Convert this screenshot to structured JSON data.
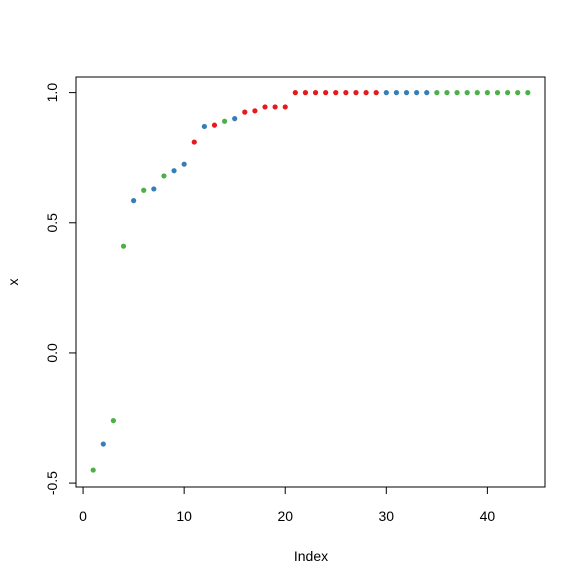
{
  "chart_data": {
    "type": "scatter",
    "title": "",
    "xlabel": "Index",
    "ylabel": "x",
    "xlim": [
      -0.7,
      45.7
    ],
    "ylim": [
      -0.515,
      1.06
    ],
    "x_ticks": [
      0,
      10,
      20,
      30,
      40
    ],
    "x_tick_labels": [
      "0",
      "10",
      "20",
      "30",
      "40"
    ],
    "y_ticks": [
      -0.5,
      0.0,
      0.5,
      1.0
    ],
    "y_tick_labels": [
      "-0.5",
      "0.0",
      "0.5",
      "1.0"
    ],
    "grid": false,
    "legend": "none",
    "colors": {
      "green": "#4daf4a",
      "blue": "#377eb8",
      "red": "#e41a1c"
    },
    "points": [
      {
        "x": 1,
        "y": -0.45,
        "color": "green"
      },
      {
        "x": 2,
        "y": -0.35,
        "color": "blue"
      },
      {
        "x": 3,
        "y": -0.26,
        "color": "green"
      },
      {
        "x": 4,
        "y": 0.41,
        "color": "green"
      },
      {
        "x": 5,
        "y": 0.585,
        "color": "blue"
      },
      {
        "x": 6,
        "y": 0.625,
        "color": "green"
      },
      {
        "x": 7,
        "y": 0.63,
        "color": "blue"
      },
      {
        "x": 8,
        "y": 0.68,
        "color": "green"
      },
      {
        "x": 9,
        "y": 0.7,
        "color": "blue"
      },
      {
        "x": 10,
        "y": 0.725,
        "color": "blue"
      },
      {
        "x": 11,
        "y": 0.81,
        "color": "red"
      },
      {
        "x": 12,
        "y": 0.87,
        "color": "blue"
      },
      {
        "x": 13,
        "y": 0.875,
        "color": "red"
      },
      {
        "x": 14,
        "y": 0.89,
        "color": "green"
      },
      {
        "x": 15,
        "y": 0.9,
        "color": "blue"
      },
      {
        "x": 16,
        "y": 0.925,
        "color": "red"
      },
      {
        "x": 17,
        "y": 0.93,
        "color": "red"
      },
      {
        "x": 18,
        "y": 0.945,
        "color": "red"
      },
      {
        "x": 19,
        "y": 0.945,
        "color": "red"
      },
      {
        "x": 20,
        "y": 0.945,
        "color": "red"
      },
      {
        "x": 21,
        "y": 1.0,
        "color": "red"
      },
      {
        "x": 22,
        "y": 1.0,
        "color": "red"
      },
      {
        "x": 23,
        "y": 1.0,
        "color": "red"
      },
      {
        "x": 24,
        "y": 1.0,
        "color": "red"
      },
      {
        "x": 25,
        "y": 1.0,
        "color": "red"
      },
      {
        "x": 26,
        "y": 1.0,
        "color": "red"
      },
      {
        "x": 27,
        "y": 1.0,
        "color": "red"
      },
      {
        "x": 28,
        "y": 1.0,
        "color": "red"
      },
      {
        "x": 29,
        "y": 1.0,
        "color": "red"
      },
      {
        "x": 30,
        "y": 1.0,
        "color": "blue"
      },
      {
        "x": 31,
        "y": 1.0,
        "color": "blue"
      },
      {
        "x": 32,
        "y": 1.0,
        "color": "blue"
      },
      {
        "x": 33,
        "y": 1.0,
        "color": "blue"
      },
      {
        "x": 34,
        "y": 1.0,
        "color": "blue"
      },
      {
        "x": 35,
        "y": 1.0,
        "color": "green"
      },
      {
        "x": 36,
        "y": 1.0,
        "color": "green"
      },
      {
        "x": 37,
        "y": 1.0,
        "color": "green"
      },
      {
        "x": 38,
        "y": 1.0,
        "color": "green"
      },
      {
        "x": 39,
        "y": 1.0,
        "color": "green"
      },
      {
        "x": 40,
        "y": 1.0,
        "color": "green"
      },
      {
        "x": 41,
        "y": 1.0,
        "color": "green"
      },
      {
        "x": 42,
        "y": 1.0,
        "color": "green"
      },
      {
        "x": 43,
        "y": 1.0,
        "color": "green"
      },
      {
        "x": 44,
        "y": 1.0,
        "color": "green"
      }
    ]
  }
}
